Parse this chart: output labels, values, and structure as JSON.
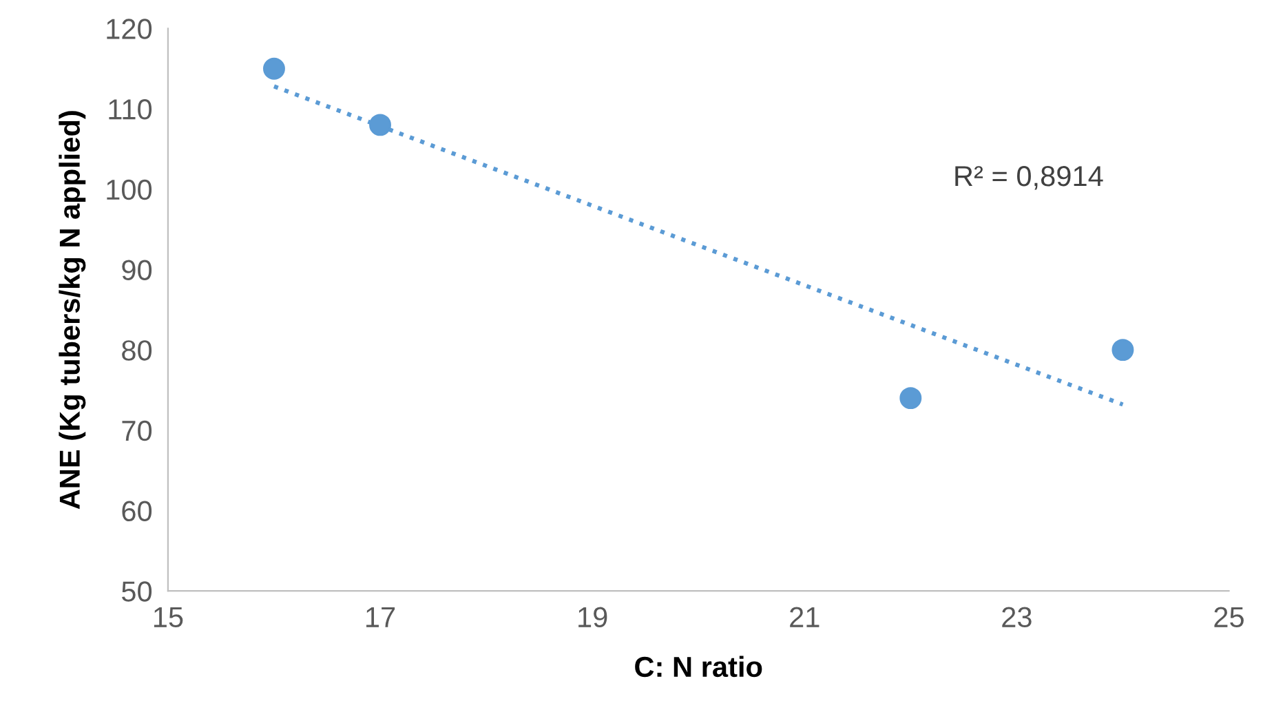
{
  "chart_data": {
    "type": "scatter",
    "xlabel": "C: N ratio",
    "ylabel": "ANE (Kg tubers/kg N applied)",
    "series": [
      {
        "color": "#5b9bd5",
        "x": [
          16,
          17,
          22,
          24
        ],
        "values": [
          115,
          108,
          74,
          80
        ],
        "marker": "circle"
      },
      {
        "type": "line",
        "color": "#5b9bd5",
        "x": [
          16,
          24
        ],
        "values": [
          112.8,
          73.2
        ],
        "line_style": "dotted",
        "marker": "none"
      }
    ],
    "annotations": [
      "R² = 0,8914"
    ],
    "xlim": [
      15,
      25
    ],
    "xticks": [
      15,
      17,
      19,
      21,
      23,
      25
    ],
    "ylim": [
      50,
      120
    ],
    "yticks": [
      50,
      60,
      70,
      80,
      90,
      100,
      110,
      120
    ],
    "grid": false,
    "legend": false
  }
}
